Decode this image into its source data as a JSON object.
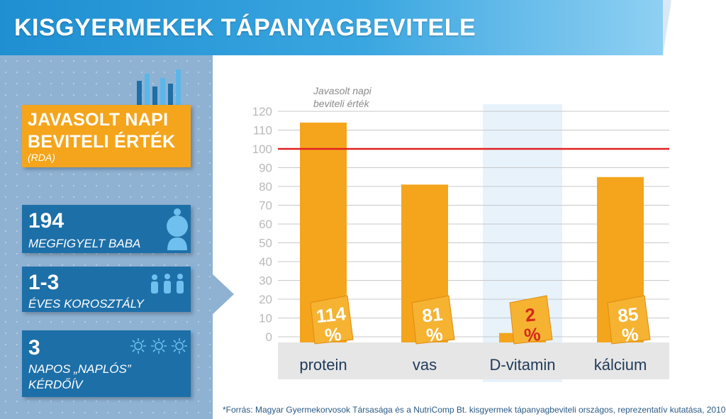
{
  "header": {
    "title": "KISGYERMEKEK TÁPANYAGBEVITELE"
  },
  "sidebar": {
    "rda": {
      "title": "JAVASOLT NAPI BEVITELI ÉRTÉK",
      "subtitle": "(RDA)"
    },
    "stats": [
      {
        "number": "194",
        "label": "MEGFIGYELT BABA",
        "icon": "baby-icon"
      },
      {
        "number": "1-3",
        "label": "ÉVES KOROSZTÁLY",
        "icon": "children-icon"
      },
      {
        "number": "3",
        "label": "NAPOS „NAPLÓS” KÉRDŐÍV",
        "icon": "sun-icon"
      }
    ]
  },
  "colors": {
    "bar": "#f4a51c",
    "header": "#1f8fd2",
    "stat_box": "#1d6fa8",
    "rda_line": "#e02020",
    "highlight": "#e7f2fb"
  },
  "chart_data": {
    "type": "bar",
    "categories": [
      "protein",
      "vas",
      "D-vitamin",
      "kálcium"
    ],
    "values": [
      114,
      81,
      2,
      85
    ],
    "value_labels": [
      "114 %",
      "81 %",
      "2 %",
      "85 %"
    ],
    "highlighted_category": "D-vitamin",
    "reference_line": {
      "value": 100,
      "label": "Javasolt napi beviteli érték"
    },
    "ylim": [
      0,
      120
    ],
    "yticks": [
      0,
      10,
      20,
      30,
      40,
      50,
      60,
      70,
      80,
      90,
      100,
      110,
      120
    ],
    "title": "",
    "xlabel": "",
    "ylabel": ""
  },
  "footnote": "*Forrás: Magyar Gyermekorvosok Társasága és a NutriComp Bt. kisgyermek tápanyagbeviteli országos, reprezentatív kutatása, 2010"
}
